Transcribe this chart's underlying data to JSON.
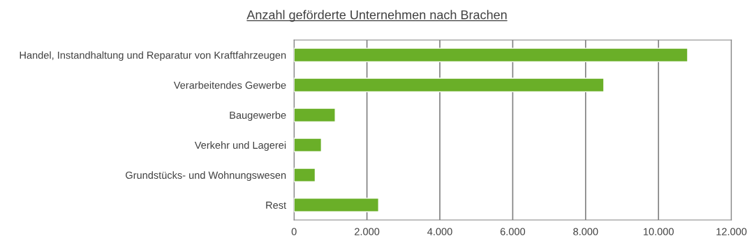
{
  "chart_data": {
    "type": "bar",
    "orientation": "horizontal",
    "title": "Anzahl geförderte Unternehmen nach Brachen",
    "categories": [
      "Handel, Instandhaltung und Reparatur von Kraftfahrzeugen",
      "Verarbeitendes Gewerbe",
      "Baugewerbe",
      "Verkehr und Lagerei",
      "Grundstücks- und Wohnungswesen",
      "Rest"
    ],
    "values": [
      10800,
      8500,
      1130,
      750,
      580,
      2320
    ],
    "color": "#6aaf28",
    "xlim": [
      0,
      12000
    ],
    "xticks": [
      0,
      {
        "value": 2000,
        "label": "2.000"
      },
      {
        "value": 4000,
        "label": "4.000"
      },
      {
        "value": 6000,
        "label": "6.000"
      },
      {
        "value": 8000,
        "label": "8.000"
      },
      {
        "value": 10000,
        "label": "10.000"
      },
      {
        "value": 12000,
        "label": "12.000"
      }
    ],
    "grid": "x",
    "legend": false
  }
}
